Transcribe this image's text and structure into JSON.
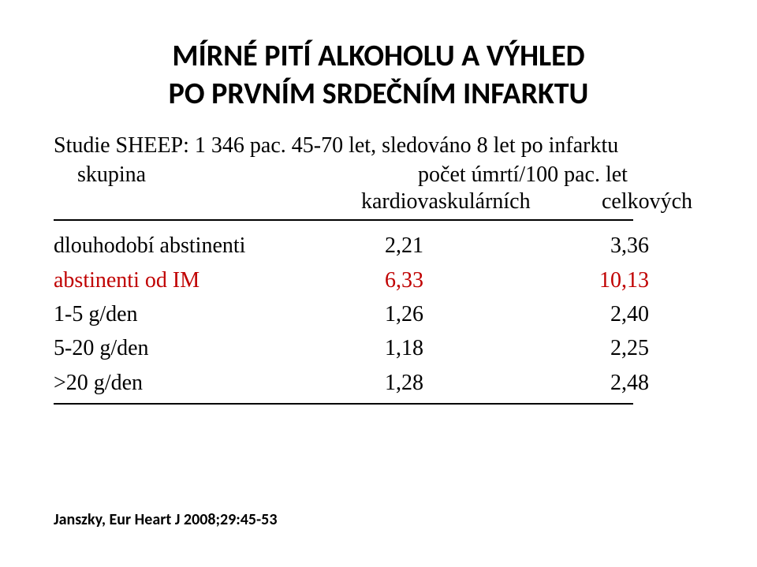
{
  "title_line1": "MÍRNÉ PITÍ ALKOHOLU A VÝHLED",
  "title_line2": "PO PRVNÍM SRDEČNÍM INFARKTU",
  "subtitle": "Studie SHEEP: 1 346 pac. 45-70 let, sledováno 8 let po infarktu",
  "header": {
    "left": "skupina",
    "right_top": "počet úmrtí/100 pac. let",
    "right_sub_left": "kardiovaskulárních",
    "right_sub_right": "celkových"
  },
  "rows": [
    {
      "label": "dlouhodobí abstinenti",
      "v1": "2,21",
      "v2": "3,36",
      "highlight": false
    },
    {
      "label": "abstinenti od IM",
      "v1": "6,33",
      "v2": "10,13",
      "highlight": true
    },
    {
      "label": "1-5 g/den",
      "v1": "1,26",
      "v2": "2,40",
      "highlight": false
    },
    {
      "label": "5-20 g/den",
      "v1": "1,18",
      "v2": "2,25",
      "highlight": false
    },
    {
      "label": ">20 g/den",
      "v1": "1,28",
      "v2": "2,48",
      "highlight": false
    }
  ],
  "citation": "Janszky, Eur Heart J 2008;29:45-53"
}
